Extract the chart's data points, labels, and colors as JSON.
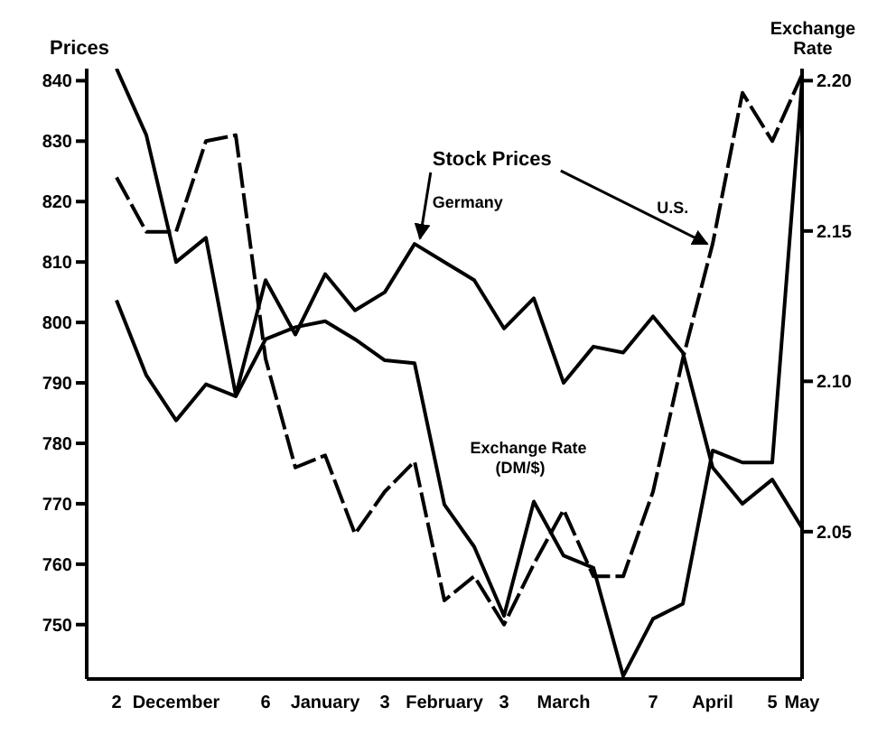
{
  "chart_data": {
    "type": "line",
    "ylabel": "Prices",
    "y2label": "Exchange Rate",
    "annotations": [
      {
        "text": "Stock Prices",
        "x": "April",
        "y": 813
      }
    ],
    "categories": [
      "2",
      null,
      "December",
      null,
      null,
      "6",
      null,
      "January",
      null,
      "3",
      null,
      "February",
      null,
      "3",
      null,
      "March",
      null,
      null,
      "7",
      null,
      "April",
      null,
      "5",
      "May"
    ],
    "ylim": [
      741,
      842
    ],
    "yticks": [
      750,
      760,
      770,
      780,
      790,
      800,
      810,
      820,
      830,
      840
    ],
    "y2lim": [
      2.001,
      2.204
    ],
    "y2ticks": [
      {
        "value": 2.05,
        "label": "2.05"
      },
      {
        "value": 2.1,
        "label": "2.10"
      },
      {
        "value": 2.15,
        "label": "2.15"
      },
      {
        "value": 2.2,
        "label": "2.20"
      }
    ],
    "series": [
      {
        "name": "Germany",
        "color": "#000000",
        "values": [
          842,
          831,
          810,
          814,
          788,
          807,
          798,
          808,
          802,
          805,
          813,
          810,
          807,
          799,
          804,
          790,
          796,
          795,
          801,
          795,
          776,
          770,
          774,
          766
        ]
      },
      {
        "name": "U.S.",
        "color": "#000000",
        "line_style": "dashed",
        "values": [
          824,
          815,
          815,
          830,
          831,
          794,
          776,
          778,
          765,
          772,
          777,
          754,
          758,
          750,
          760,
          769,
          758,
          758,
          772,
          794,
          813,
          838,
          830,
          841
        ]
      },
      {
        "name": "Exchange Rate (DM/$)",
        "color": "#000000",
        "axis": "y2",
        "values": [
          2.127,
          2.102,
          2.087,
          2.099,
          2.095,
          2.114,
          2.118,
          2.12,
          2.114,
          2.107,
          2.106,
          2.059,
          2.045,
          2.022,
          2.06,
          2.042,
          2.038,
          2.002,
          2.021,
          2.026,
          2.077,
          2.073,
          2.073,
          2.2
        ]
      }
    ]
  }
}
